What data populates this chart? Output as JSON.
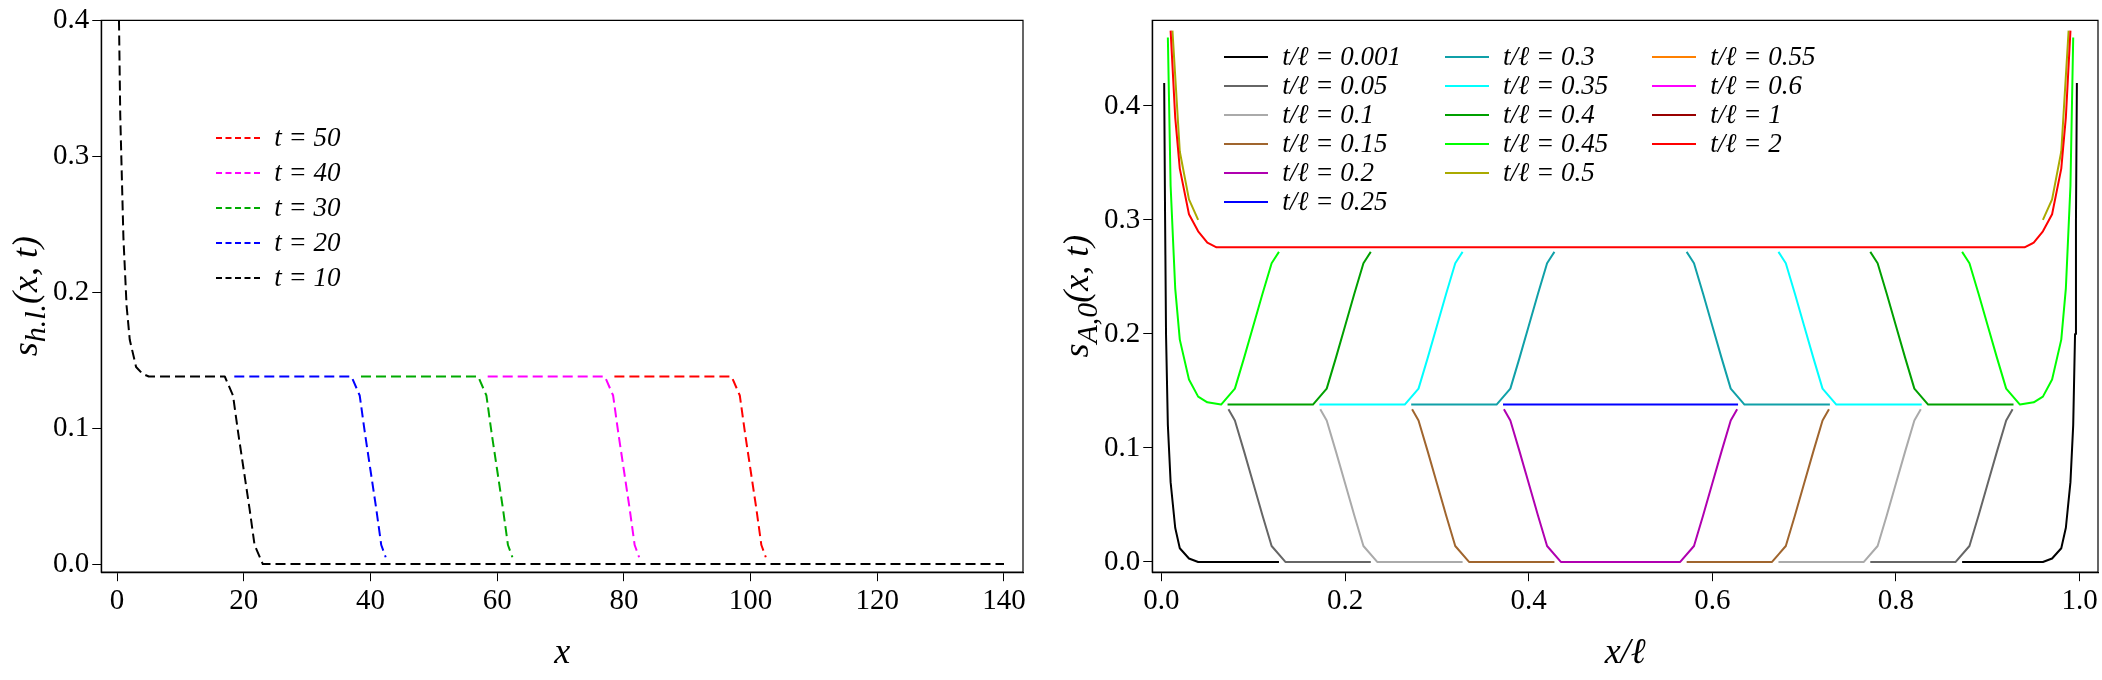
{
  "chart_data": [
    {
      "type": "line",
      "xlabel": "x",
      "ylabel": "s$_{h.l.}$(x, t)",
      "xlim": [
        -2.5,
        143
      ],
      "ylim": [
        -0.006,
        0.4
      ],
      "xticks": [
        0,
        20,
        40,
        60,
        80,
        100,
        120,
        140
      ],
      "yticks": [
        {
          "value": 0,
          "label": "0.0"
        },
        0.1,
        0.2,
        0.3,
        0.4
      ],
      "grid": false,
      "legend": "top left",
      "line_style": "dashed",
      "series": [
        {
          "name": "t = 50",
          "color": "#ff0000",
          "x": [
            78.5,
            97,
            98.3,
            99.1,
            100,
            100.9,
            101.7,
            102.4
          ],
          "values": [
            0.138,
            0.138,
            0.124,
            0.097,
            0.069,
            0.041,
            0.014,
            0.005
          ]
        },
        {
          "name": "t = 40",
          "color": "#ff00ff",
          "x": [
            58.5,
            77,
            78.3,
            79.1,
            80,
            80.9,
            81.7,
            82.4
          ],
          "values": [
            0.138,
            0.138,
            0.124,
            0.097,
            0.069,
            0.041,
            0.014,
            0.005
          ]
        },
        {
          "name": "t = 30",
          "color": "#00aa00",
          "x": [
            38.5,
            57,
            58.3,
            59.1,
            60,
            60.9,
            61.7,
            62.4
          ],
          "values": [
            0.138,
            0.138,
            0.124,
            0.097,
            0.069,
            0.041,
            0.014,
            0.005
          ]
        },
        {
          "name": "t = 20",
          "color": "#0000ff",
          "x": [
            18.5,
            37,
            38.3,
            39.1,
            40,
            40.9,
            41.7,
            42.4
          ],
          "values": [
            0.138,
            0.138,
            0.124,
            0.097,
            0.069,
            0.041,
            0.014,
            0.005
          ]
        },
        {
          "name": "t = 10",
          "color": "#000000",
          "x": [
            0.3,
            0.5,
            1,
            1.5,
            2,
            3,
            4,
            5,
            17,
            18.3,
            19.1,
            20,
            20.9,
            21.7,
            23,
            140
          ],
          "values": [
            0.4,
            0.33,
            0.24,
            0.19,
            0.165,
            0.145,
            0.14,
            0.138,
            0.138,
            0.124,
            0.097,
            0.069,
            0.041,
            0.014,
            0,
            0
          ]
        }
      ]
    },
    {
      "type": "line",
      "xlabel": "x/ℓ",
      "ylabel": "s$_{A,0}$(x, t)",
      "xlim": [
        -0.01,
        1.02
      ],
      "ylim": [
        -0.009,
        0.475
      ],
      "xticks": [
        {
          "value": 0,
          "label": "0.0"
        },
        0.2,
        0.4,
        0.6,
        0.8,
        {
          "value": 1,
          "label": "1.0"
        }
      ],
      "yticks": [
        {
          "value": 0,
          "label": "0.0"
        },
        0.1,
        0.2,
        0.3,
        0.4
      ],
      "grid": false,
      "legend": "top left",
      "line_style": "solid",
      "series": [
        {
          "name": "t/ℓ = 0.001",
          "color": "#000000",
          "x": [
            0.003,
            0.004,
            0.005,
            0.007,
            0.01,
            0.015,
            0.02,
            0.03,
            0.04,
            0.128,
            0.5,
            0.872,
            0.96,
            0.97,
            0.98,
            0.985,
            0.99,
            0.993,
            0.995,
            0.996,
            0.997
          ],
          "values": [
            0.42,
            0.3,
            0.2,
            0.12,
            0.07,
            0.03,
            0.012,
            0.003,
            0,
            0,
            null,
            0,
            0,
            0.003,
            0.012,
            0.03,
            0.07,
            0.12,
            0.2,
            0.3,
            0.42
          ]
        },
        {
          "name": "t/ℓ = 0.05",
          "color": "#666666",
          "x": [
            0.073,
            0.08,
            0.09,
            0.1,
            0.11,
            0.12,
            0.135,
            0.228,
            0.5,
            0.772,
            0.865,
            0.88,
            0.89,
            0.9,
            0.91,
            0.92,
            0.927
          ],
          "values": [
            0.134,
            0.124,
            0.097,
            0.069,
            0.041,
            0.014,
            0,
            0,
            null,
            0,
            0,
            0.014,
            0.041,
            0.069,
            0.097,
            0.124,
            0.134
          ]
        },
        {
          "name": "t/ℓ = 0.1",
          "color": "#aaaaaa",
          "x": [
            0.173,
            0.18,
            0.19,
            0.2,
            0.21,
            0.22,
            0.235,
            0.328,
            0.5,
            0.672,
            0.765,
            0.78,
            0.79,
            0.8,
            0.81,
            0.82,
            0.827
          ],
          "values": [
            0.134,
            0.124,
            0.097,
            0.069,
            0.041,
            0.014,
            0,
            0,
            null,
            0,
            0,
            0.014,
            0.041,
            0.069,
            0.097,
            0.124,
            0.134
          ]
        },
        {
          "name": "t/ℓ = 0.15",
          "color": "#a0652e",
          "x": [
            0.273,
            0.28,
            0.29,
            0.3,
            0.31,
            0.32,
            0.335,
            0.428,
            0.5,
            0.572,
            0.665,
            0.68,
            0.69,
            0.7,
            0.71,
            0.72,
            0.727
          ],
          "values": [
            0.134,
            0.124,
            0.097,
            0.069,
            0.041,
            0.014,
            0,
            0,
            null,
            0,
            0,
            0.014,
            0.041,
            0.069,
            0.097,
            0.124,
            0.134
          ]
        },
        {
          "name": "t/ℓ = 0.2",
          "color": "#b000b0",
          "x": [
            0.373,
            0.38,
            0.39,
            0.4,
            0.41,
            0.42,
            0.435,
            0.565,
            0.58,
            0.59,
            0.6,
            0.61,
            0.62,
            0.627
          ],
          "values": [
            0.134,
            0.124,
            0.097,
            0.069,
            0.041,
            0.014,
            0,
            0,
            0.014,
            0.041,
            0.069,
            0.097,
            0.124,
            0.134
          ]
        },
        {
          "name": "t/ℓ = 0.25",
          "color": "#0000ff",
          "x": [
            0.372,
            0.628
          ],
          "values": [
            0.138,
            0.138
          ]
        },
        {
          "name": "t/ℓ = 0.3",
          "color": "#10a0a8",
          "x": [
            0.272,
            0.365,
            0.38,
            0.39,
            0.4,
            0.41,
            0.42,
            0.428,
            0.5,
            0.572,
            0.58,
            0.59,
            0.6,
            0.61,
            0.62,
            0.635,
            0.728
          ],
          "values": [
            0.138,
            0.138,
            0.152,
            0.179,
            0.207,
            0.235,
            0.262,
            0.272,
            null,
            0.272,
            0.262,
            0.235,
            0.207,
            0.179,
            0.152,
            0.138,
            0.138
          ]
        },
        {
          "name": "t/ℓ = 0.35",
          "color": "#00ffff",
          "x": [
            0.172,
            0.265,
            0.28,
            0.29,
            0.3,
            0.31,
            0.32,
            0.328,
            0.5,
            0.672,
            0.68,
            0.69,
            0.7,
            0.71,
            0.72,
            0.735,
            0.828
          ],
          "values": [
            0.138,
            0.138,
            0.152,
            0.179,
            0.207,
            0.235,
            0.262,
            0.272,
            null,
            0.272,
            0.262,
            0.235,
            0.207,
            0.179,
            0.152,
            0.138,
            0.138
          ]
        },
        {
          "name": "t/ℓ = 0.4",
          "color": "#00a000",
          "x": [
            0.072,
            0.165,
            0.18,
            0.19,
            0.2,
            0.21,
            0.22,
            0.228,
            0.5,
            0.772,
            0.78,
            0.79,
            0.8,
            0.81,
            0.82,
            0.835,
            0.928
          ],
          "values": [
            0.138,
            0.138,
            0.152,
            0.179,
            0.207,
            0.235,
            0.262,
            0.272,
            null,
            0.272,
            0.262,
            0.235,
            0.207,
            0.179,
            0.152,
            0.138,
            0.138
          ]
        },
        {
          "name": "t/ℓ = 0.45",
          "color": "#00ff00",
          "x": [
            0.007,
            0.01,
            0.015,
            0.02,
            0.03,
            0.04,
            0.05,
            0.065,
            0.08,
            0.09,
            0.1,
            0.11,
            0.12,
            0.128,
            0.5,
            0.872,
            0.88,
            0.89,
            0.9,
            0.91,
            0.92,
            0.935,
            0.95,
            0.96,
            0.97,
            0.98,
            0.985,
            0.99,
            0.993
          ],
          "values": [
            0.46,
            0.33,
            0.24,
            0.195,
            0.16,
            0.145,
            0.14,
            0.138,
            0.152,
            0.179,
            0.207,
            0.235,
            0.262,
            0.272,
            null,
            0.272,
            0.262,
            0.235,
            0.207,
            0.179,
            0.152,
            0.138,
            0.14,
            0.145,
            0.16,
            0.195,
            0.24,
            0.33,
            0.46
          ]
        },
        {
          "name": "t/ℓ = 0.5",
          "color": "#aaaa00",
          "x": [
            0.012,
            0.02,
            0.03,
            0.04,
            0.5,
            0.96,
            0.97,
            0.98,
            0.988
          ],
          "values": [
            0.466,
            0.36,
            0.318,
            0.3,
            null,
            0.3,
            0.318,
            0.36,
            0.466
          ]
        },
        {
          "name": "t/ℓ = 0.55",
          "color": "#ff8000"
        },
        {
          "name": "t/ℓ = 0.6",
          "color": "#ff00ff"
        },
        {
          "name": "t/ℓ = 1",
          "color": "#990000"
        },
        {
          "name": "t/ℓ = 2",
          "color": "#ff0000",
          "x": [
            0.01,
            0.015,
            0.02,
            0.03,
            0.04,
            0.05,
            0.06,
            0.94,
            0.95,
            0.96,
            0.97,
            0.98,
            0.985,
            0.99
          ],
          "values": [
            0.466,
            0.39,
            0.345,
            0.305,
            0.29,
            0.28,
            0.276,
            0.276,
            0.28,
            0.29,
            0.305,
            0.345,
            0.39,
            0.466
          ]
        }
      ]
    }
  ]
}
